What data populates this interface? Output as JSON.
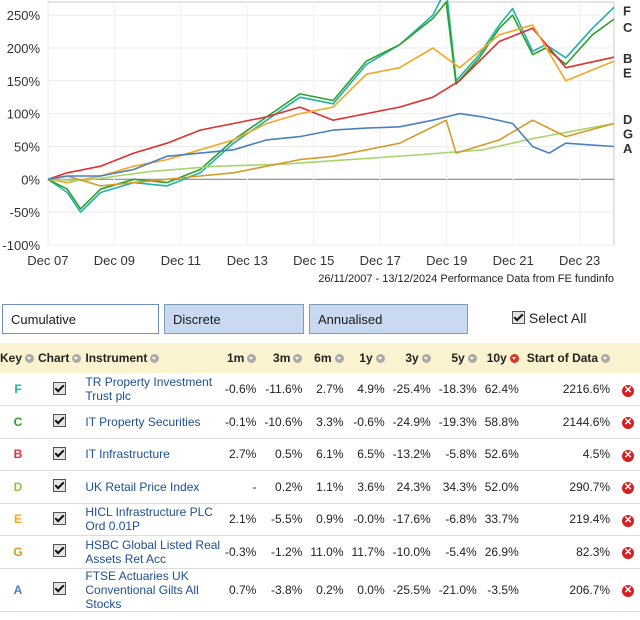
{
  "chart_data": {
    "type": "line",
    "yticks": [
      "250%",
      "200%",
      "150%",
      "100%",
      "50%",
      "0%",
      "-50%",
      "-100%"
    ],
    "ytick_values": [
      250,
      200,
      150,
      100,
      50,
      0,
      -50,
      -100
    ],
    "ylim": [
      -100,
      270
    ],
    "xticks": [
      "Dec 07",
      "Dec 09",
      "Dec 11",
      "Dec 13",
      "Dec 15",
      "Dec 17",
      "Dec 19",
      "Dec 21",
      "Dec 23"
    ],
    "xlim": [
      2007.92,
      2024.95
    ],
    "date_range": "26/11/2007 - 13/12/2024",
    "source": "Performance Data from FE fundinfo",
    "series": [
      {
        "key": "F",
        "color": "#20b2aa",
        "x": [
          2007.92,
          2008.5,
          2008.9,
          2009.5,
          2010.5,
          2011.5,
          2012.5,
          2013.5,
          2014.5,
          2015.5,
          2016.5,
          2017.5,
          2018.5,
          2019.5,
          2019.9,
          2020.2,
          2020.9,
          2021.5,
          2021.9,
          2022.5,
          2022.9,
          2023.5,
          2024.3,
          2024.95
        ],
        "y": [
          0,
          -20,
          -50,
          -20,
          -5,
          -10,
          10,
          55,
          90,
          125,
          115,
          175,
          205,
          250,
          290,
          150,
          190,
          235,
          260,
          195,
          205,
          185,
          230,
          262
        ]
      },
      {
        "key": "C",
        "color": "#2ca02c",
        "x": [
          2007.92,
          2008.5,
          2008.9,
          2009.5,
          2010.5,
          2011.5,
          2012.5,
          2013.5,
          2014.5,
          2015.5,
          2016.5,
          2017.5,
          2018.5,
          2019.5,
          2019.9,
          2020.2,
          2020.9,
          2021.5,
          2021.9,
          2022.5,
          2022.9,
          2023.5,
          2024.3,
          2024.95
        ],
        "y": [
          0,
          -15,
          -45,
          -15,
          0,
          -5,
          15,
          60,
          95,
          130,
          120,
          180,
          205,
          245,
          270,
          145,
          185,
          230,
          250,
          190,
          200,
          175,
          220,
          244
        ]
      },
      {
        "key": "B",
        "color": "#e03030",
        "x": [
          2007.92,
          2008.5,
          2009.5,
          2010.5,
          2011.5,
          2012.5,
          2013.5,
          2014.5,
          2015.5,
          2016.5,
          2017.5,
          2018.5,
          2019.5,
          2020.3,
          2021.5,
          2022.5,
          2023.5,
          2024.95
        ],
        "y": [
          0,
          10,
          20,
          40,
          55,
          75,
          85,
          95,
          110,
          90,
          100,
          110,
          125,
          150,
          210,
          230,
          170,
          186
        ]
      },
      {
        "key": "E",
        "color": "#f5a623",
        "x": [
          2007.92,
          2008.5,
          2009.5,
          2010.5,
          2011.5,
          2012.5,
          2013.5,
          2014.5,
          2015.5,
          2016.5,
          2017.5,
          2018.5,
          2019.5,
          2020.3,
          2021.5,
          2022.5,
          2023.5,
          2024.95
        ],
        "y": [
          0,
          -5,
          5,
          20,
          30,
          45,
          60,
          85,
          100,
          110,
          160,
          170,
          200,
          170,
          220,
          235,
          150,
          180
        ]
      },
      {
        "key": "D",
        "color": "#a8d66c",
        "x": [
          2007.92,
          2009,
          2011,
          2013,
          2015,
          2017,
          2019,
          2021,
          2022.5,
          2024.95
        ],
        "y": [
          0,
          -2,
          12,
          20,
          23,
          30,
          37,
          45,
          62,
          85
        ]
      },
      {
        "key": "G",
        "color": "#d49a2a",
        "x": [
          2007.92,
          2008.5,
          2009.5,
          2010.5,
          2011.5,
          2012.5,
          2013.5,
          2014.5,
          2015.5,
          2016.5,
          2017.5,
          2018.5,
          2019.5,
          2019.9,
          2020.2,
          2021.5,
          2022.5,
          2023.5,
          2024.95
        ],
        "y": [
          0,
          5,
          -10,
          -5,
          0,
          5,
          10,
          20,
          30,
          35,
          45,
          55,
          80,
          90,
          40,
          60,
          90,
          65,
          85
        ]
      },
      {
        "key": "A",
        "color": "#4a7fc1",
        "x": [
          2007.92,
          2008.5,
          2009.5,
          2010.5,
          2011.5,
          2012.5,
          2013.5,
          2014.5,
          2015.5,
          2016.5,
          2017.5,
          2018.5,
          2019.5,
          2020.3,
          2021,
          2021.9,
          2022.5,
          2023,
          2023.5,
          2024.95
        ],
        "y": [
          0,
          5,
          5,
          15,
          35,
          40,
          45,
          60,
          65,
          75,
          78,
          80,
          90,
          100,
          95,
          85,
          50,
          40,
          55,
          50
        ]
      }
    ],
    "legend_right": [
      {
        "label": "F",
        "y": 257
      },
      {
        "label": "C",
        "y": 232
      },
      {
        "label": "B",
        "y": 185
      },
      {
        "label": "E",
        "y": 163
      },
      {
        "label": "D",
        "y": 92
      },
      {
        "label": "G",
        "y": 70
      },
      {
        "label": "A",
        "y": 48
      }
    ]
  },
  "tabs": [
    {
      "label": "Cumulative Performance",
      "active": true
    },
    {
      "label": "Discrete Performance",
      "active": false
    },
    {
      "label": "Annualised Performance",
      "active": false
    }
  ],
  "select_all": "Select All",
  "headers": {
    "key": "Key",
    "chart": "Chart",
    "instrument": "Instrument",
    "m1": "1m",
    "m3": "3m",
    "m6": "6m",
    "y1": "1y",
    "y3": "3y",
    "y5": "5y",
    "y10": "10y",
    "start": "Start of Data"
  },
  "rows": [
    {
      "key": "F",
      "key_color": "#20b2aa",
      "name": "TR Property Investment Trust plc",
      "m1": "-0.6%",
      "m3": "-11.6%",
      "m6": "2.7%",
      "y1": "4.9%",
      "y3": "-25.4%",
      "y5": "-18.3%",
      "y10": "62.4%",
      "start": "2216.6%"
    },
    {
      "key": "C",
      "key_color": "#2ca02c",
      "name": "IT Property Securities",
      "m1": "-0.1%",
      "m3": "-10.6%",
      "m6": "3.3%",
      "y1": "-0.6%",
      "y3": "-24.9%",
      "y5": "-19.3%",
      "y10": "58.8%",
      "start": "2144.6%"
    },
    {
      "key": "B",
      "key_color": "#e03030",
      "name": "IT Infrastructure",
      "m1": "2.7%",
      "m3": "0.5%",
      "m6": "6.1%",
      "y1": "6.5%",
      "y3": "-13.2%",
      "y5": "-5.8%",
      "y10": "52.6%",
      "start": "4.5%"
    },
    {
      "key": "D",
      "key_color": "#8cc63f",
      "name": "UK Retail Price Index",
      "m1": "-",
      "m3": "0.2%",
      "m6": "1.1%",
      "y1": "3.6%",
      "y3": "24.3%",
      "y5": "34.3%",
      "y10": "52.0%",
      "start": "290.7%"
    },
    {
      "key": "E",
      "key_color": "#f5a623",
      "name": "HICL Infrastructure PLC Ord 0.01P",
      "m1": "2.1%",
      "m3": "-5.5%",
      "m6": "0.9%",
      "y1": "-0.0%",
      "y3": "-17.6%",
      "y5": "-6.8%",
      "y10": "33.7%",
      "start": "219.4%"
    },
    {
      "key": "G",
      "key_color": "#d49a2a",
      "name": "HSBC Global Listed Real Assets Ret Acc",
      "m1": "-0.3%",
      "m3": "-1.2%",
      "m6": "11.0%",
      "y1": "11.7%",
      "y3": "-10.0%",
      "y5": "-5.4%",
      "y10": "26.9%",
      "start": "82.3%"
    },
    {
      "key": "A",
      "key_color": "#4a7fc1",
      "name": "FTSE Actuaries UK Conventional Gilts All Stocks",
      "m1": "0.7%",
      "m3": "-3.8%",
      "m6": "0.2%",
      "y1": "0.0%",
      "y3": "-25.5%",
      "y5": "-21.0%",
      "y10": "-3.5%",
      "start": "206.7%"
    }
  ]
}
